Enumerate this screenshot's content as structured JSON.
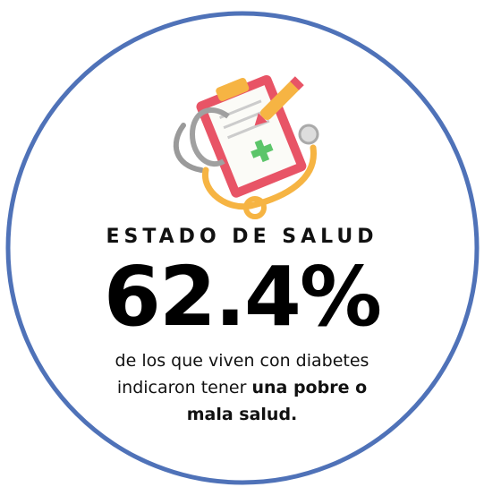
{
  "header": {
    "title": "ESTADO DE SALUD"
  },
  "stat": {
    "value": "62.4%"
  },
  "description": {
    "lines": [
      "de los que viven con diabetes",
      "indicaron tener "
    ],
    "bold": [
      "una pobre o",
      "mala salud."
    ]
  }
}
